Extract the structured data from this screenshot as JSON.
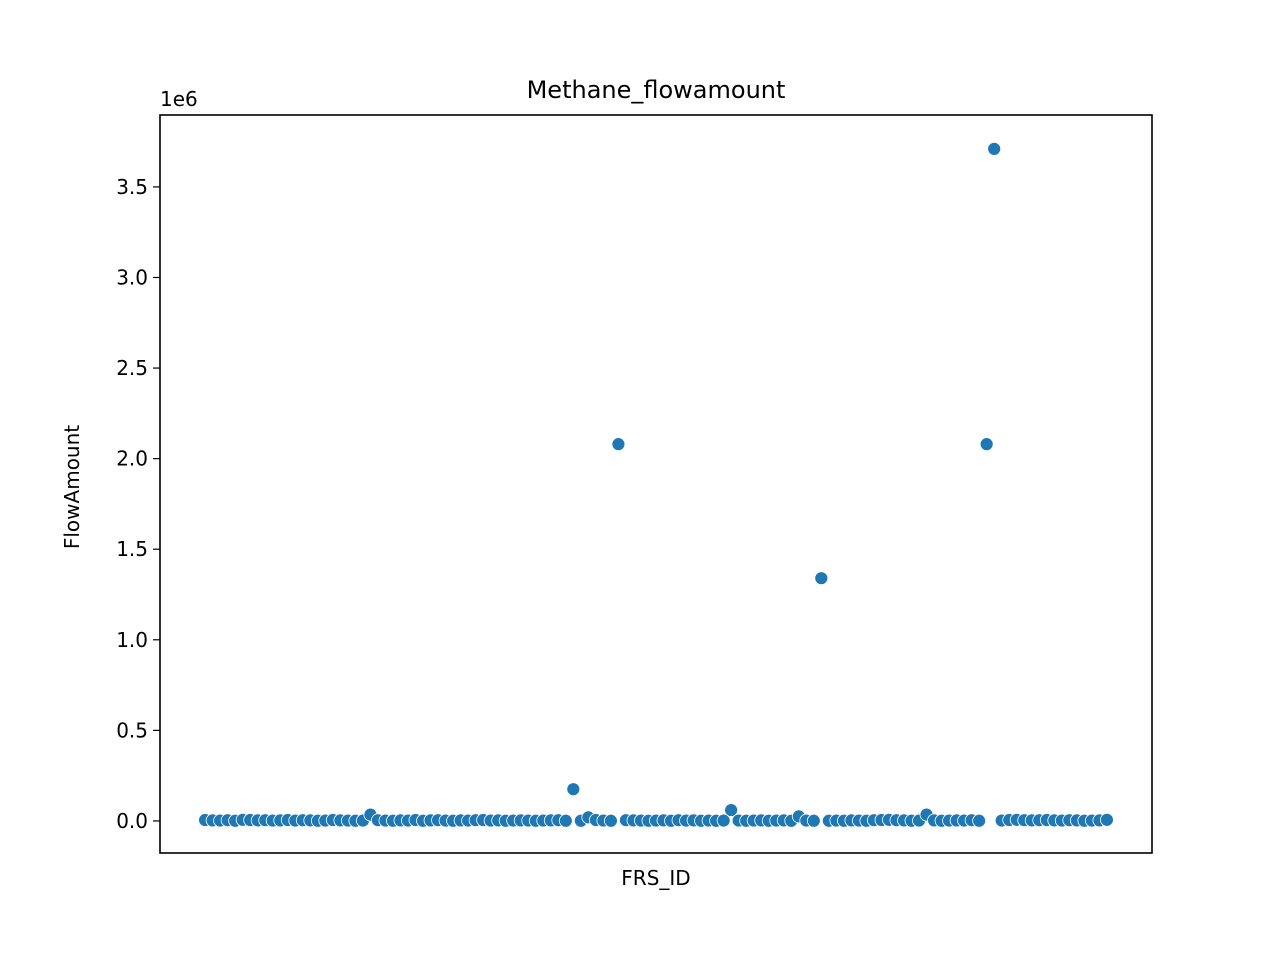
{
  "chart_data": {
    "type": "scatter",
    "title": "Methane_flowamount",
    "x_label": "FRS_ID",
    "y_label": "FlowAmount",
    "y_offset_label": "1e6",
    "categories": [
      null,
      null,
      null,
      null,
      null,
      null,
      null,
      null,
      null,
      null,
      null,
      null,
      null,
      null,
      null,
      null,
      null,
      null,
      null,
      null,
      null,
      null,
      null,
      null,
      null,
      null,
      null,
      null,
      null,
      null,
      null,
      null,
      null,
      null,
      null,
      null,
      null,
      null,
      null,
      null,
      null,
      null,
      null,
      null,
      null,
      null,
      null,
      null,
      null,
      null,
      null,
      null,
      null,
      null,
      null,
      null,
      null,
      null,
      null,
      null,
      null,
      null,
      null,
      null,
      null,
      null,
      null,
      null,
      null,
      null,
      null,
      null,
      null,
      null,
      null,
      null,
      null,
      null,
      null,
      null,
      null,
      null,
      null,
      null,
      null,
      null,
      null,
      null,
      null,
      null,
      null,
      null,
      null,
      null,
      null,
      null,
      null,
      null,
      null,
      null,
      null,
      null,
      null,
      null,
      null,
      null,
      null,
      null,
      null,
      null,
      null,
      null,
      null,
      null,
      null,
      null,
      null,
      null,
      null,
      null,
      null
    ],
    "values": [
      5000,
      3000,
      2000,
      4000,
      1000,
      6000,
      5000,
      3000,
      4000,
      2000,
      3000,
      5000,
      2000,
      4000,
      3000,
      1000,
      2000,
      5000,
      3000,
      2000,
      1000,
      2000,
      35000,
      4000,
      2000,
      1000,
      3000,
      2000,
      5000,
      1000,
      3000,
      4000,
      2000,
      1000,
      3000,
      2000,
      4000,
      5000,
      2000,
      3000,
      1000,
      2000,
      3000,
      2000,
      1000,
      2000,
      3000,
      4000,
      1000,
      175000,
      1000,
      20000,
      5000,
      2000,
      1000,
      2080000,
      4000,
      3000,
      2000,
      1000,
      2000,
      3000,
      1000,
      4000,
      2000,
      3000,
      1000,
      2000,
      1000,
      2000,
      60000,
      2000,
      1000,
      2000,
      3000,
      1000,
      2000,
      3000,
      1000,
      25000,
      2000,
      1000,
      1340000,
      1000,
      2000,
      1000,
      3000,
      2000,
      1000,
      4000,
      5000,
      6000,
      4000,
      3000,
      1000,
      2000,
      35000,
      3000,
      1000,
      2000,
      3000,
      2000,
      4000,
      1000,
      2080000,
      3710000,
      2000,
      5000,
      6000,
      4000,
      3000,
      4000,
      5000,
      3000,
      2000,
      4000,
      3000,
      1000,
      2000,
      3000,
      6000
    ],
    "color": "#1f77b4",
    "ylim": [
      -177000,
      3897000
    ],
    "yticks": [
      {
        "value": 0,
        "label": "0.0"
      },
      {
        "value": 500000,
        "label": "0.5"
      },
      {
        "value": 1000000,
        "label": "1.0"
      },
      {
        "value": 1500000,
        "label": "1.5"
      },
      {
        "value": 2000000,
        "label": "2.0"
      },
      {
        "value": 2500000,
        "label": "2.5"
      },
      {
        "value": 3000000,
        "label": "3.0"
      },
      {
        "value": 3500000,
        "label": "3.5"
      }
    ]
  }
}
